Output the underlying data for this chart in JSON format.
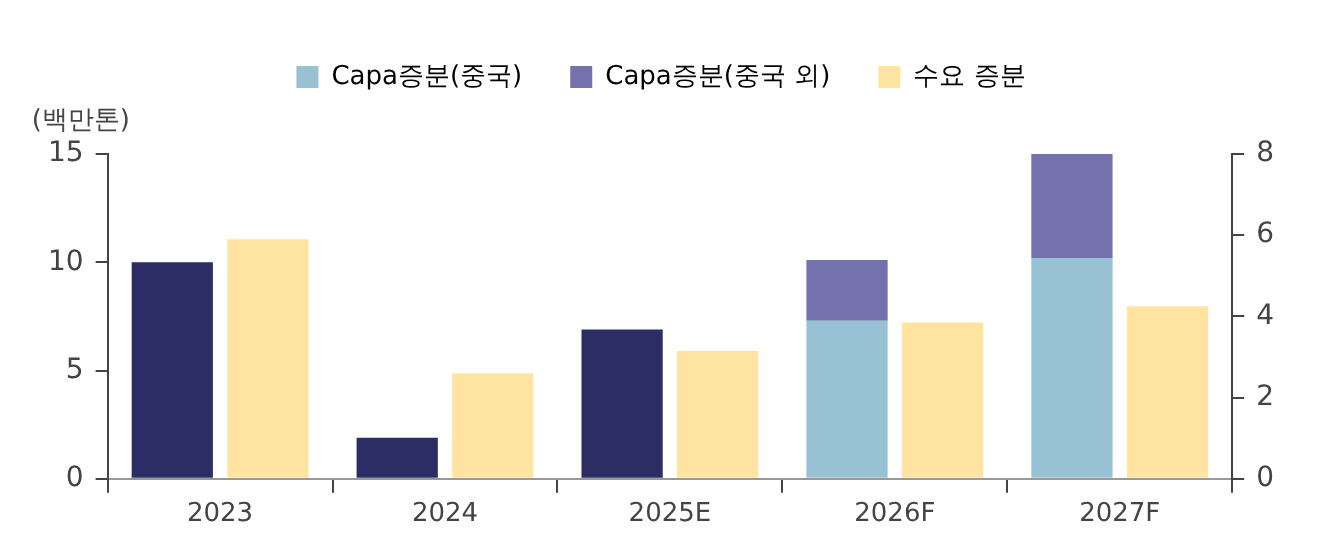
{
  "chart_data": {
    "type": "bar",
    "ylabel": "(백만톤)",
    "categories": [
      "2023",
      "2024",
      "2025E",
      "2026F",
      "2027F"
    ],
    "stacked": true,
    "legend": "top",
    "series": [
      {
        "name": "Capa증분(중국)",
        "color": "#98c1d3",
        "colors": [
          "#2d2d66",
          "#2d2d66",
          "#2d2d66",
          "#98c1d3",
          "#98c1d3"
        ],
        "values": [
          10.0,
          1.9,
          6.9,
          7.3,
          10.2
        ]
      },
      {
        "name": "Capa증분(중국 외)",
        "color": "#7472ad",
        "values": [
          null,
          null,
          null,
          2.8,
          4.8
        ]
      },
      {
        "name": "수요 증분",
        "color": "#fee4a0",
        "axis": "y2",
        "values": [
          5.9,
          2.6,
          3.15,
          3.85,
          4.25
        ]
      }
    ],
    "ylim": [
      0,
      15
    ],
    "yticks": [
      0,
      5,
      10,
      15
    ],
    "y2lim": [
      0,
      8
    ],
    "y2ticks": [
      0,
      2,
      4,
      6,
      8
    ]
  }
}
